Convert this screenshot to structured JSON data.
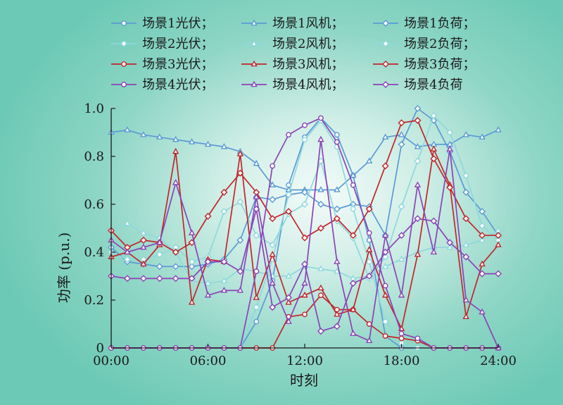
{
  "chart_data": {
    "type": "line",
    "xlabel": "时刻",
    "ylabel": "功率 (p.u.)",
    "x_ticks": [
      "00:00",
      "06:00",
      "12:00",
      "18:00",
      "24:00"
    ],
    "x_tick_values": [
      0,
      6,
      12,
      18,
      24
    ],
    "xlim": [
      0,
      24
    ],
    "ylim": [
      0,
      1.0
    ],
    "y_ticks": [
      "0",
      "0.2",
      "0.4",
      "0.6",
      "0.8",
      "1.0"
    ],
    "y_tick_values": [
      0,
      0.2,
      0.4,
      0.6,
      0.8,
      1.0
    ],
    "grid": false,
    "legend_position": "top",
    "x": [
      0,
      1,
      2,
      3,
      4,
      5,
      6,
      7,
      8,
      9,
      10,
      11,
      12,
      13,
      14,
      15,
      16,
      17,
      18,
      19,
      20,
      21,
      22,
      23,
      24
    ],
    "series": [
      {
        "name": "场景1光伏；",
        "color": "#5b9bd5",
        "marker": "circle",
        "values": [
          0,
          0,
          0,
          0,
          0,
          0,
          0,
          0,
          0,
          0.11,
          0.28,
          0.68,
          0.88,
          0.96,
          0.89,
          0.72,
          0.45,
          0.05,
          0,
          0,
          0,
          0,
          0,
          0,
          0
        ]
      },
      {
        "name": "场景1风机；",
        "color": "#5b9bd5",
        "marker": "triangle",
        "values": [
          0.9,
          0.91,
          0.89,
          0.88,
          0.87,
          0.86,
          0.85,
          0.84,
          0.82,
          0.77,
          0.68,
          0.66,
          0.66,
          0.66,
          0.66,
          0.72,
          0.78,
          0.88,
          0.89,
          0.84,
          0.85,
          0.85,
          0.89,
          0.88,
          0.91
        ]
      },
      {
        "name": "场景1负荷；",
        "color": "#5b9bd5",
        "marker": "diamond",
        "values": [
          0.42,
          0.36,
          0.35,
          0.34,
          0.34,
          0.34,
          0.35,
          0.37,
          0.45,
          0.63,
          0.62,
          0.64,
          0.65,
          0.6,
          0.58,
          0.6,
          0.59,
          0.47,
          0.85,
          1.0,
          0.95,
          0.82,
          0.65,
          0.57,
          0.47
        ]
      },
      {
        "name": "场景2光伏；",
        "color": "#8fd8dc",
        "marker": "circle",
        "values": [
          0,
          0,
          0,
          0,
          0,
          0,
          0,
          0,
          0,
          0.17,
          0.37,
          0.64,
          0.87,
          0.95,
          0.84,
          0.58,
          0.36,
          0.11,
          0.02,
          0,
          0,
          0,
          0,
          0,
          0
        ]
      },
      {
        "name": "场景2风机；",
        "color": "#8fd8dc",
        "marker": "triangle",
        "values": [
          0.49,
          0.52,
          0.48,
          0.46,
          0.4,
          0.28,
          0.27,
          0.28,
          0.33,
          0.32,
          0.3,
          0.3,
          0.34,
          0.33,
          0.32,
          0.29,
          0.3,
          0.34,
          0.37,
          0.4,
          0.42,
          0.42,
          0.43,
          0.45,
          0.49
        ]
      },
      {
        "name": "场景2负荷；",
        "color": "#8fd8dc",
        "marker": "diamond",
        "values": [
          0.4,
          0.37,
          0.37,
          0.39,
          0.42,
          0.36,
          0.38,
          0.57,
          0.61,
          0.47,
          0.43,
          0.56,
          0.6,
          0.78,
          0.53,
          0.46,
          0.29,
          0.38,
          0.59,
          0.78,
          0.97,
          0.9,
          0.72,
          0.51,
          0.45
        ]
      },
      {
        "name": "场景3光伏；",
        "color": "#c0262b",
        "marker": "circle",
        "values": [
          0,
          0,
          0,
          0,
          0,
          0,
          0,
          0,
          0,
          0,
          0,
          0.13,
          0.14,
          0.22,
          0.16,
          0.16,
          0.1,
          0.05,
          0.04,
          0.03,
          0,
          0,
          0,
          0,
          0
        ]
      },
      {
        "name": "场景3风机；",
        "color": "#c0262b",
        "marker": "triangle",
        "values": [
          0.38,
          0.4,
          0.35,
          0.43,
          0.82,
          0.19,
          0.37,
          0.36,
          0.81,
          0.21,
          0.39,
          0.19,
          0.22,
          0.25,
          0.14,
          0.16,
          0.41,
          0.22,
          0.08,
          0.39,
          0.83,
          0.68,
          0.13,
          0.35,
          0.43
        ]
      },
      {
        "name": "场景3负荷；",
        "color": "#c0262b",
        "marker": "diamond",
        "values": [
          0.49,
          0.42,
          0.45,
          0.44,
          0.4,
          0.44,
          0.55,
          0.65,
          0.73,
          0.65,
          0.54,
          0.57,
          0.46,
          0.5,
          0.54,
          0.47,
          0.58,
          0.76,
          0.94,
          0.95,
          0.79,
          0.67,
          0.54,
          0.47,
          0.47
        ]
      },
      {
        "name": "场景4光伏；",
        "color": "#8a44b5",
        "marker": "circle",
        "values": [
          0,
          0,
          0,
          0,
          0,
          0,
          0,
          0,
          0,
          0.32,
          0.76,
          0.89,
          0.93,
          0.96,
          0.86,
          0.68,
          0.48,
          0.26,
          0.06,
          0.04,
          0,
          0,
          0,
          0,
          0
        ]
      },
      {
        "name": "场景4风机；",
        "color": "#8a44b5",
        "marker": "triangle",
        "values": [
          0.45,
          0.4,
          0.42,
          0.44,
          0.69,
          0.48,
          0.22,
          0.24,
          0.24,
          0.63,
          0.27,
          0.11,
          0.27,
          0.87,
          0.36,
          0.06,
          0.03,
          0.47,
          0.22,
          0.68,
          0.4,
          0.83,
          0.2,
          0.15,
          0
        ]
      },
      {
        "name": "场景4负荷",
        "color": "#8a44b5",
        "marker": "diamond",
        "values": [
          0.3,
          0.29,
          0.29,
          0.29,
          0.29,
          0.29,
          0.36,
          0.36,
          0.32,
          0.58,
          0.17,
          0.21,
          0.35,
          0.07,
          0.09,
          0.27,
          0.3,
          0.4,
          0.47,
          0.54,
          0.53,
          0.44,
          0.38,
          0.31,
          0.31
        ]
      }
    ]
  }
}
